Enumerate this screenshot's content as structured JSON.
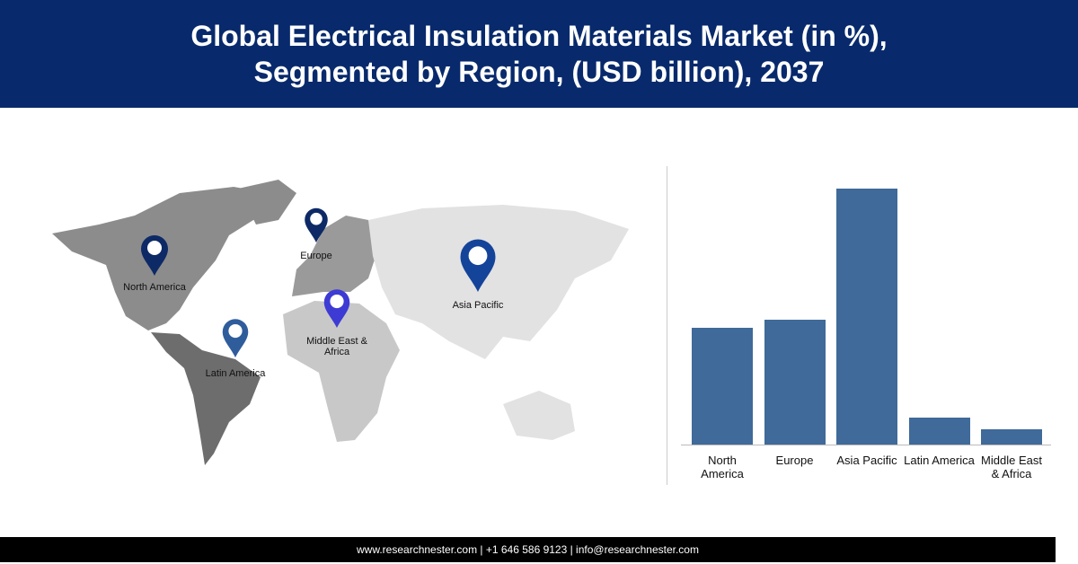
{
  "header": {
    "title": "Global Electrical Insulation Materials Market (in %), Segmented by Region, (USD billion), 2037"
  },
  "map": {
    "pins": [
      {
        "label": "North America",
        "color": "#0d2a66"
      },
      {
        "label": "Europe",
        "color": "#0d2a66"
      },
      {
        "label": "Asia Pacific",
        "color": "#14439a"
      },
      {
        "label": "Middle East & Africa",
        "color": "#3d3bd4"
      },
      {
        "label": "Latin America",
        "color": "#2f5d9c"
      }
    ]
  },
  "chart_data": {
    "type": "bar",
    "categories": [
      "North America",
      "Europe",
      "Asia Pacific",
      "Latin America",
      "Middle East & Africa"
    ],
    "values": [
      21.6,
      23.1,
      47.4,
      5.0,
      2.9
    ],
    "color": "#3f6a99"
  },
  "footer": {
    "text": "www.researchnester.com | +1 646 586 9123 | info@researchnester.com"
  }
}
